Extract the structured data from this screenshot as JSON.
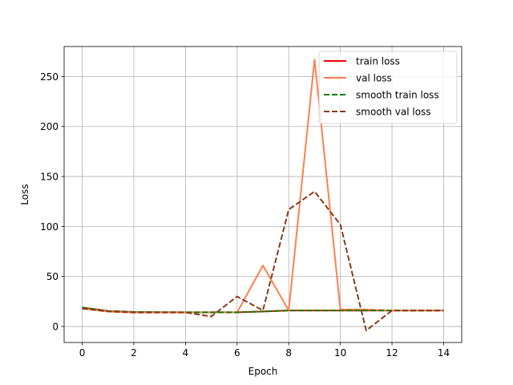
{
  "chart_data": {
    "type": "line",
    "title": "",
    "xlabel": "Epoch",
    "ylabel": "Loss",
    "xlim": [
      -0.7,
      14.7
    ],
    "ylim": [
      -16,
      280
    ],
    "xticks": [
      0,
      2,
      4,
      6,
      8,
      10,
      12,
      14
    ],
    "yticks": [
      0,
      50,
      100,
      150,
      200,
      250
    ],
    "grid": true,
    "legend_position": "top-right",
    "x": [
      0,
      1,
      2,
      3,
      4,
      5,
      6,
      7,
      8,
      9,
      10,
      11,
      12,
      13,
      14
    ],
    "series": [
      {
        "name": "train loss",
        "color": "#ff0000",
        "style": "solid",
        "values": [
          19,
          15.5,
          14.5,
          14.3,
          14.2,
          14.2,
          14.2,
          15,
          16,
          16,
          16,
          16,
          16,
          16,
          16
        ]
      },
      {
        "name": "val loss",
        "color": "#ff7f50",
        "style": "solid",
        "values": [
          18,
          15,
          14,
          14,
          14,
          14,
          14,
          61,
          16,
          267,
          17,
          17,
          16,
          16,
          16
        ]
      },
      {
        "name": "smooth train loss",
        "color": "#008000",
        "style": "dashed",
        "values": [
          19,
          15.5,
          14.5,
          14.3,
          14.2,
          14.2,
          14.2,
          15,
          16,
          16,
          16,
          16,
          16,
          16,
          16
        ]
      },
      {
        "name": "smooth val loss",
        "color": "#8b3a1a",
        "style": "dashed",
        "values": [
          18,
          15,
          14,
          14,
          14,
          10,
          30,
          16,
          117,
          135,
          102,
          -4,
          16,
          16,
          16
        ]
      }
    ]
  }
}
